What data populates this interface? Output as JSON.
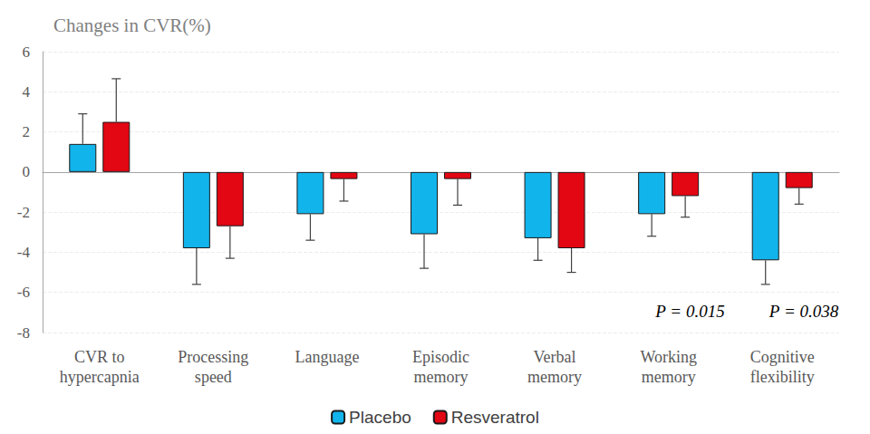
{
  "chart_data": {
    "type": "bar",
    "title": "Changes in CVR(%)",
    "categories": [
      "CVR to\nhypercapnia",
      "Processing\nspeed",
      "Language",
      "Episodic\nmemory",
      "Verbal\nmemory",
      "Working\nmemory",
      "Cognitive\nflexibility"
    ],
    "series": [
      {
        "name": "Placebo",
        "color": "#12b4ec",
        "values": [
          1.4,
          -3.8,
          -2.1,
          -3.1,
          -3.3,
          -2.1,
          -4.4
        ],
        "errors": [
          1.5,
          1.8,
          1.3,
          1.7,
          1.1,
          1.1,
          1.2
        ]
      },
      {
        "name": "Resveratrol",
        "color": "#e30613",
        "values": [
          2.5,
          -2.7,
          -0.35,
          -0.35,
          -3.8,
          -1.2,
          -0.8
        ],
        "errors": [
          2.15,
          1.6,
          1.1,
          1.3,
          1.2,
          1.05,
          0.8
        ]
      }
    ],
    "annotations": [
      {
        "text": "P = 0.015",
        "category": "Working\nmemory"
      },
      {
        "text": "P = 0.038",
        "category": "Cognitive\nflexibility"
      }
    ],
    "ylim": [
      -8,
      6
    ],
    "yticks": [
      -8,
      -6,
      -4,
      -2,
      0,
      2,
      4,
      6
    ],
    "grid": true,
    "legend": "bottom"
  }
}
